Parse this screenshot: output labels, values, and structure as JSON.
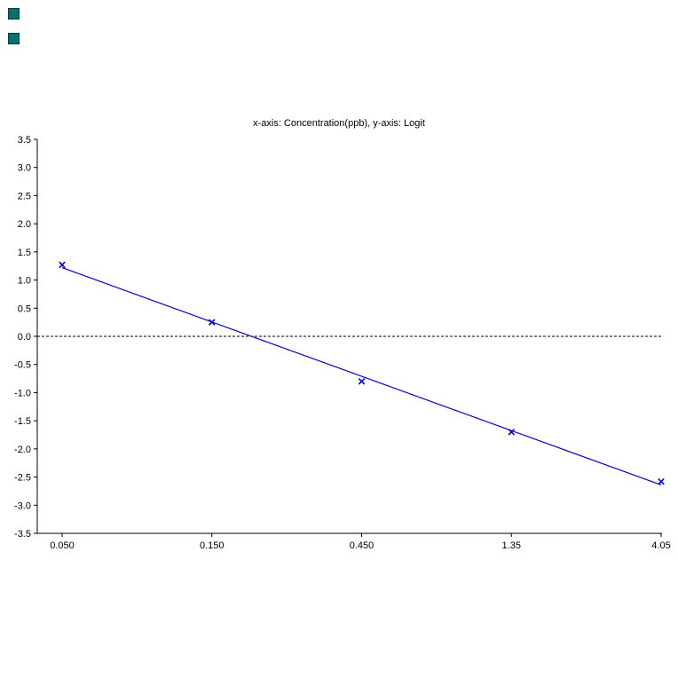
{
  "window_icons": {
    "top": {
      "color": "#007272"
    },
    "bottom": {
      "color": "#007272"
    }
  },
  "chart_data": {
    "type": "line",
    "title": "x-axis: Concentration(ppb), y-axis: Logit",
    "xlabel": "Concentration(ppb)",
    "ylabel": "Logit",
    "x_scale": "log",
    "x_labels": [
      "0.050",
      "0.150",
      "0.450",
      "1.35",
      "4.05"
    ],
    "y_tick_labels": [
      "3.5",
      "3.0",
      "2.5",
      "2.0",
      "1.5",
      "1.0",
      "0.5",
      "0.0",
      "-0.5",
      "-1.0",
      "-1.5",
      "-2.0",
      "-2.5",
      "-3.0",
      "-3.5"
    ],
    "ylim": [
      -3.5,
      3.5
    ],
    "y_tick_step": 0.5,
    "points": [
      {
        "x": 0.05,
        "y": 1.27
      },
      {
        "x": 0.15,
        "y": 0.25
      },
      {
        "x": 0.45,
        "y": -0.8
      },
      {
        "x": 1.35,
        "y": -1.7
      },
      {
        "x": 4.05,
        "y": -2.58
      }
    ],
    "fit_line": {
      "y_start": 1.22,
      "y_end": -2.64
    },
    "zero_reference_line_y": 0.0,
    "grid": false,
    "legend": false,
    "line_color": "#0000cc",
    "marker_color": "#0000cc",
    "marker_style": "x",
    "axis_color": "#000000",
    "reference_line_style": "dashed"
  }
}
